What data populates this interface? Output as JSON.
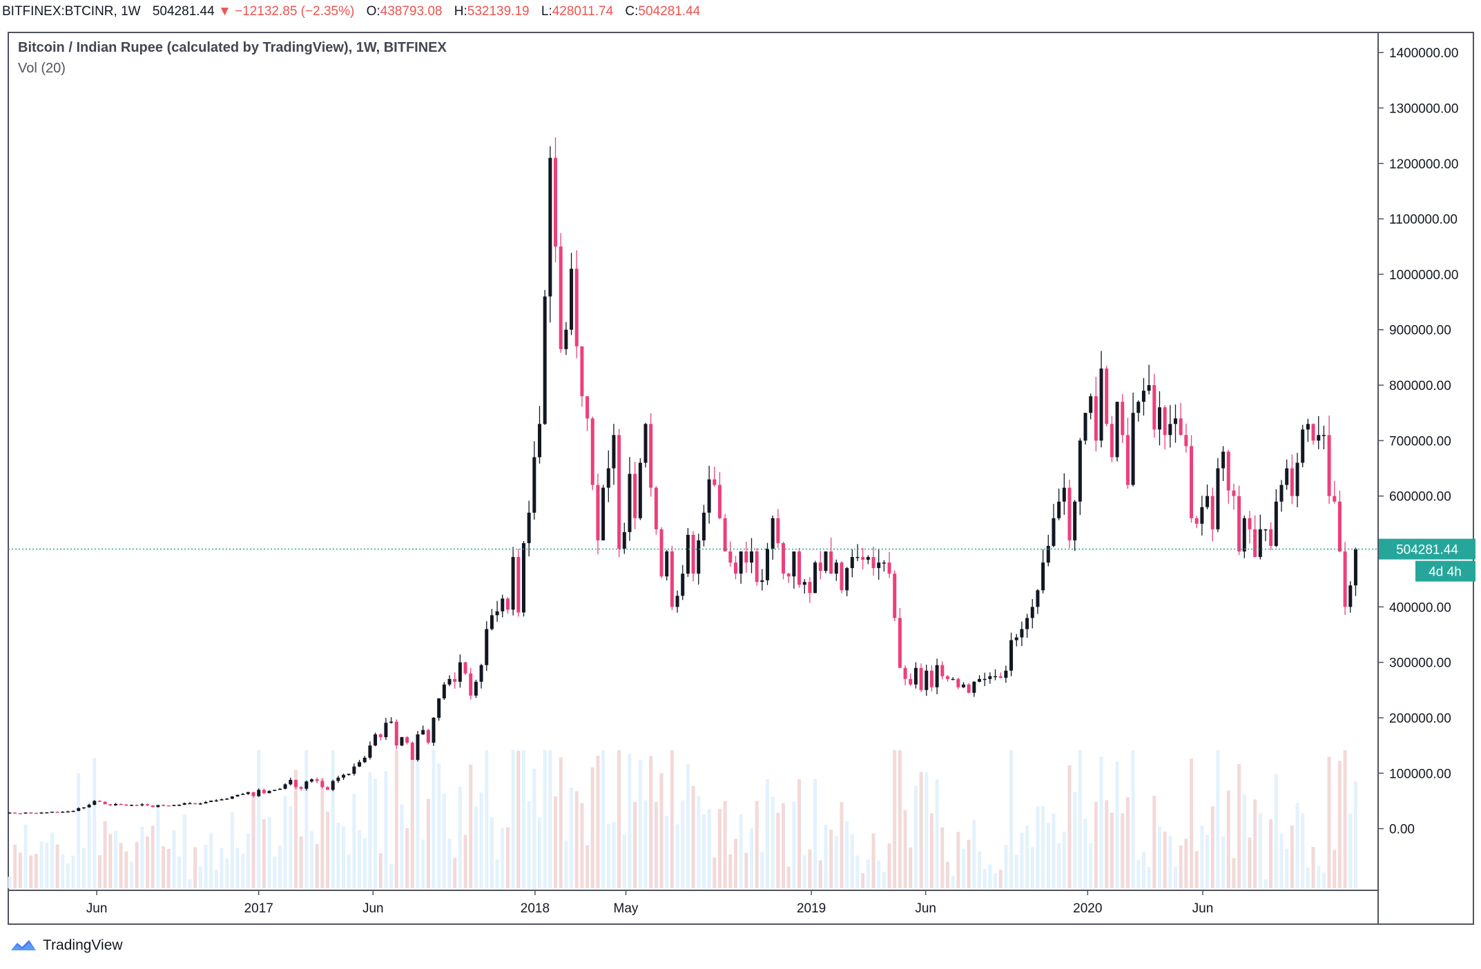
{
  "header": {
    "symbol": "BITFINEX:BTCINR",
    "interval": "1W",
    "last": "504281.44",
    "change": "−12132.85 (−2.35%)",
    "open_label": "O:",
    "open": "438793.08",
    "high_label": "H:",
    "high": "532139.19",
    "low_label": "L:",
    "low": "428011.74",
    "close_label": "C:",
    "close": "504281.44"
  },
  "legend": {
    "title": "Bitcoin / Indian Rupee (calculated by TradingView), 1W, BITFINEX",
    "volume": "Vol (20)"
  },
  "footer": {
    "brand": "TradingView"
  },
  "colors": {
    "up": "#26a69a",
    "down": "#ef5350",
    "candle_up_body": "#131722",
    "candle_down_body": "#ec407a",
    "price_line": "#26a69a",
    "vol_up": "#e3f2fd",
    "vol_down": "#f3d9d9"
  },
  "chart_data": {
    "type": "candlestick",
    "title": "Bitcoin / Indian Rupee (calculated by TradingView), 1W, BITFINEX",
    "yaxis": {
      "side": "right",
      "ticks": [
        "1400000.00",
        "1300000.00",
        "1200000.00",
        "1100000.00",
        "1000000.00",
        "900000.00",
        "800000.00",
        "700000.00",
        "600000.00",
        "500000.00",
        "400000.00",
        "300000.00",
        "200000.00",
        "100000.00",
        "0.00"
      ],
      "ylim": [
        -110000,
        1435000
      ]
    },
    "xaxis": {
      "ticks": [
        {
          "label": "Jun",
          "date": "2016-06-01"
        },
        {
          "label": "2017",
          "date": "2017-01-01"
        },
        {
          "label": "Jun",
          "date": "2017-06-01"
        },
        {
          "label": "2018",
          "date": "2018-01-01"
        },
        {
          "label": "May",
          "date": "2018-05-01"
        },
        {
          "label": "2019",
          "date": "2019-01-01"
        },
        {
          "label": "Jun",
          "date": "2019-06-01"
        },
        {
          "label": "2020",
          "date": "2020-01-01"
        },
        {
          "label": "Jun",
          "date": "2020-06-01"
        }
      ]
    },
    "price_line": {
      "value": 504281.44,
      "label": "504281.44",
      "countdown": "4d 4h"
    },
    "volume_indicator": "Vol (20)",
    "series": [
      {
        "name": "BTCINR",
        "interval": "1W",
        "closes": [
          29000,
          28000,
          27500,
          29000,
          28500,
          27500,
          29000,
          29500,
          30500,
          29500,
          30500,
          31000,
          32000,
          37000,
          38500,
          43000,
          50000,
          48500,
          44000,
          42000,
          44500,
          43500,
          42000,
          43000,
          42000,
          44000,
          42000,
          39000,
          42500,
          42000,
          41000,
          42500,
          43000,
          46000,
          46000,
          45000,
          45500,
          48000,
          50500,
          51000,
          53000,
          54000,
          58000,
          61000,
          62500,
          66000,
          58500,
          70000,
          64000,
          68000,
          70000,
          72000,
          80000,
          88000,
          75000,
          72000,
          85000,
          89000,
          86000,
          75000,
          70000,
          86000,
          92000,
          97000,
          99000,
          112000,
          120000,
          128000,
          150000,
          170000,
          165000,
          191000,
          193000,
          150000,
          165000,
          155000,
          124000,
          170000,
          178000,
          155000,
          200000,
          235000,
          260000,
          270000,
          265000,
          300000,
          280000,
          240000,
          265000,
          295000,
          360000,
          385000,
          392000,
          415000,
          395000,
          490000,
          390000,
          515000,
          570000,
          670000,
          730000,
          960000,
          1210000,
          1050000,
          865000,
          900000,
          1010000,
          870000,
          780000,
          740000,
          620000,
          520000,
          615000,
          650000,
          710000,
          505000,
          535000,
          640000,
          560000,
          660000,
          730000,
          615000,
          540000,
          455000,
          500000,
          400000,
          420000,
          460000,
          530000,
          460000,
          520000,
          570000,
          630000,
          620000,
          560000,
          500000,
          480000,
          460000,
          500000,
          480000,
          500000,
          445000,
          448000,
          505000,
          560000,
          515000,
          460000,
          455000,
          500000,
          440000,
          445000,
          425000,
          480000,
          465000,
          500000,
          460000,
          480000,
          430000,
          470000,
          490000,
          490000,
          485000,
          490000,
          470000,
          480000,
          480000,
          460000,
          380000,
          290000,
          270000,
          260000,
          290000,
          250000,
          285000,
          255000,
          295000,
          275000,
          270000,
          270000,
          255000,
          260000,
          245000,
          265000,
          270000,
          270000,
          275000,
          275000,
          272000,
          285000,
          340000,
          345000,
          360000,
          380000,
          400000,
          430000,
          480000,
          510000,
          560000,
          590000,
          615000,
          520000,
          590000,
          700000,
          750000,
          780000,
          700000,
          830000,
          730000,
          670000,
          770000,
          710000,
          620000,
          750000,
          770000,
          790000,
          800000,
          720000,
          760000,
          710000,
          730000,
          740000,
          710000,
          690000,
          560000,
          550000,
          580000,
          600000,
          540000,
          650000,
          680000,
          610000,
          600000,
          500000,
          560000,
          540000,
          490000,
          540000,
          540000,
          510000,
          590000,
          620000,
          650000,
          600000,
          660000,
          720000,
          730000,
          700000,
          710000,
          710000,
          600000,
          590000,
          500000,
          400000,
          438793,
          504281
        ]
      }
    ]
  }
}
